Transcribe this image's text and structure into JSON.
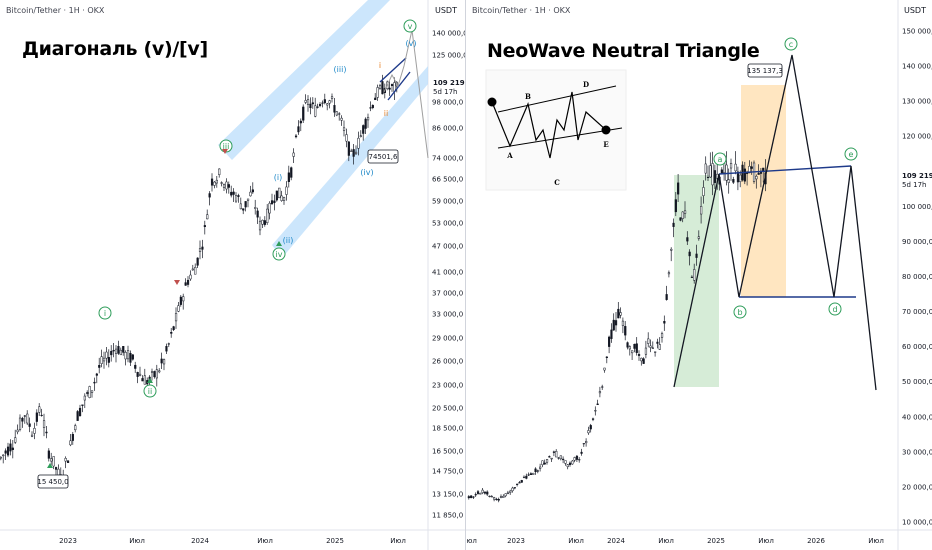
{
  "left": {
    "symbol": "Bitcoin/Tether · 1H · OKX",
    "currency": "USDT",
    "title": "Диагональ (v)/[v]",
    "price_label": "109 219,6",
    "countdown": "5d 17h",
    "callouts": [
      "74501,6",
      "15 450,0"
    ],
    "waves": {
      "i": "i",
      "ii": "ii",
      "iii": "iii",
      "iv": "iv",
      "v": "v",
      "p_i": "(i)",
      "p_ii": "(ii)",
      "p_iii": "(iii)",
      "p_iv": "(iv)",
      "p_v": "(v)",
      "m_i": "i",
      "m_ii": "ii"
    }
  },
  "right": {
    "symbol": "Bitcoin/Tether · 1H · OKX",
    "currency": "USDT",
    "title": "NeoWave Neutral Triangle",
    "price_label": "109 219,6",
    "countdown": "5d 17h",
    "target": "135 137,3",
    "inset_labels": [
      "A",
      "B",
      "C",
      "D",
      "E"
    ],
    "waves": {
      "a": "a",
      "b": "b",
      "c": "c",
      "d": "d",
      "e": "e"
    }
  },
  "chart_data": [
    {
      "type": "candlestick",
      "title": "Диагональ (v)/[v]",
      "xlabel": "",
      "ylabel": "",
      "x_ticks": [
        "2023",
        "Июл",
        "2024",
        "Июл",
        "2025",
        "Июл"
      ],
      "y_ticks": [
        "140 000,0",
        "125 000,0",
        "109 219,6",
        "98 000,0",
        "86 000,0",
        "74 000,0",
        "66 500,0",
        "59 000,0",
        "53 000,0",
        "47 000,0",
        "41 000,0",
        "37 000,0",
        "33 000,0",
        "29 000,0",
        "26 000,0",
        "23 000,0",
        "20 500,0",
        "18 500,0",
        "16 500,0",
        "14 750,0",
        "13 150,0",
        "11 850,0"
      ],
      "y_scale": "log",
      "ylim": [
        11000,
        160000
      ],
      "price_path": [
        [
          0.0,
          17200
        ],
        [
          0.03,
          18500
        ],
        [
          0.06,
          21500
        ],
        [
          0.08,
          19500
        ],
        [
          0.1,
          22200
        ],
        [
          0.12,
          17800
        ],
        [
          0.14,
          16200
        ],
        [
          0.15,
          15450
        ],
        [
          0.17,
          17500
        ],
        [
          0.19,
          21000
        ],
        [
          0.21,
          23000
        ],
        [
          0.23,
          24500
        ],
        [
          0.25,
          27500
        ],
        [
          0.27,
          28500
        ],
        [
          0.29,
          30000
        ],
        [
          0.31,
          29000
        ],
        [
          0.33,
          28200
        ],
        [
          0.35,
          26000
        ],
        [
          0.37,
          25200
        ],
        [
          0.39,
          26200
        ],
        [
          0.41,
          28000
        ],
        [
          0.43,
          32000
        ],
        [
          0.45,
          37000
        ],
        [
          0.47,
          42000
        ],
        [
          0.49,
          45000
        ],
        [
          0.51,
          52000
        ],
        [
          0.53,
          69000
        ],
        [
          0.55,
          71000
        ],
        [
          0.57,
          66000
        ],
        [
          0.59,
          64000
        ],
        [
          0.61,
          60000
        ],
        [
          0.63,
          65000
        ],
        [
          0.65,
          55000
        ],
        [
          0.67,
          58000
        ],
        [
          0.69,
          65000
        ],
        [
          0.71,
          63000
        ],
        [
          0.73,
          73000
        ],
        [
          0.75,
          92000
        ],
        [
          0.77,
          102000
        ],
        [
          0.79,
          98000
        ],
        [
          0.81,
          105000
        ],
        [
          0.83,
          102000
        ],
        [
          0.85,
          95000
        ],
        [
          0.87,
          83000
        ],
        [
          0.88,
          77000
        ],
        [
          0.9,
          84000
        ],
        [
          0.92,
          95000
        ],
        [
          0.94,
          105000
        ],
        [
          0.96,
          110000
        ],
        [
          0.98,
          109219.6
        ]
      ],
      "wave_labels": [
        {
          "label": "i",
          "price": 32000
        },
        {
          "label": "ii",
          "price": 25000
        },
        {
          "label": "iii",
          "price": 69000
        },
        {
          "label": "iv",
          "price": 50000
        },
        {
          "label": "v",
          "price": 160000
        }
      ],
      "annotations": [
        "74501,6",
        "15 450,0"
      ]
    },
    {
      "type": "candlestick",
      "title": "NeoWave Neutral Triangle",
      "xlabel": "",
      "ylabel": "",
      "x_ticks": [
        "Июл",
        "2023",
        "Июл",
        "2024",
        "Июл",
        "2025",
        "Июл",
        "2026",
        "Июл"
      ],
      "y_ticks": [
        "150 000,0",
        "140 000,0",
        "130 000,0",
        "120 000,0",
        "109 219,6",
        "100 000,0",
        "90 000,0",
        "80 000,0",
        "70 000,0",
        "60 000,0",
        "50 000,0",
        "40 000,0",
        "30 000,0",
        "20 000,0",
        "10 000,0"
      ],
      "y_scale": "linear",
      "ylim": [
        7000,
        156000
      ],
      "price_path": [
        [
          0.0,
          16800
        ],
        [
          0.05,
          19000
        ],
        [
          0.09,
          16200
        ],
        [
          0.13,
          18000
        ],
        [
          0.17,
          21500
        ],
        [
          0.21,
          23500
        ],
        [
          0.25,
          27000
        ],
        [
          0.29,
          29500
        ],
        [
          0.33,
          26500
        ],
        [
          0.37,
          28500
        ],
        [
          0.41,
          37500
        ],
        [
          0.43,
          43500
        ],
        [
          0.45,
          51000
        ],
        [
          0.47,
          62000
        ],
        [
          0.5,
          70000
        ],
        [
          0.52,
          65000
        ],
        [
          0.54,
          58000
        ],
        [
          0.56,
          60000
        ],
        [
          0.58,
          55000
        ],
        [
          0.6,
          62000
        ],
        [
          0.62,
          58000
        ],
        [
          0.64,
          61000
        ],
        [
          0.66,
          72000
        ],
        [
          0.68,
          90000
        ],
        [
          0.69,
          99000
        ],
        [
          0.7,
          105000
        ],
        [
          0.71,
          96000
        ],
        [
          0.72,
          100000
        ],
        [
          0.73,
          93000
        ],
        [
          0.74,
          85000
        ],
        [
          0.75,
          77000
        ],
        [
          0.76,
          84000
        ],
        [
          0.77,
          93000
        ],
        [
          0.78,
          103000
        ],
        [
          0.79,
          109219.6
        ]
      ],
      "triangle_points": [
        {
          "label": "a",
          "price": 108000
        },
        {
          "label": "b",
          "price": 75000
        },
        {
          "label": "c",
          "price": 142000
        },
        {
          "label": "d",
          "price": 75000
        },
        {
          "label": "e",
          "price": 108000
        }
      ],
      "annotations": [
        "135 137,3"
      ]
    }
  ]
}
